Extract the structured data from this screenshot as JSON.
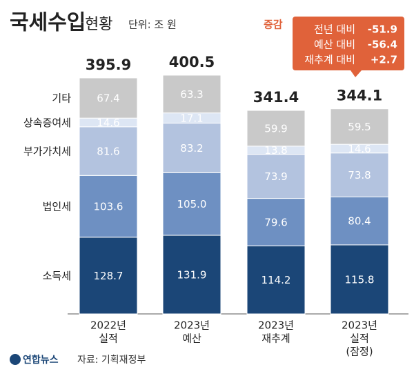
{
  "chart_data": {
    "type": "stacked-bar",
    "title": "국세수입",
    "subtitle": "현황",
    "unit": "단위: 조 원",
    "categories": [
      [
        "2022년",
        "실적"
      ],
      [
        "2023년",
        "예산"
      ],
      [
        "2023년",
        "재추계"
      ],
      [
        "2023년",
        "실적",
        "(잠정)"
      ]
    ],
    "series": [
      {
        "name": "소득세",
        "color": "#1b4677",
        "text_color": "#ffffff",
        "values": [
          128.7,
          131.9,
          114.2,
          115.8
        ],
        "value_labels": [
          "128.7",
          "131.9",
          "114.2",
          "115.8"
        ]
      },
      {
        "name": "법인세",
        "color": "#6e90c2",
        "text_color": "#ffffff",
        "values": [
          103.6,
          105.0,
          79.6,
          80.4
        ],
        "value_labels": [
          "103.6",
          "105.0",
          "79.6",
          "80.4"
        ]
      },
      {
        "name": "부가가치세",
        "color": "#b3c3df",
        "text_color": "#ffffff",
        "values": [
          81.6,
          83.2,
          73.9,
          73.8
        ],
        "value_labels": [
          "81.6",
          "83.2",
          "73.9",
          "73.8"
        ]
      },
      {
        "name": "상속증여세",
        "color": "#dde6f4",
        "text_color": "#ffffff",
        "values": [
          14.6,
          17.1,
          13.8,
          14.6
        ],
        "value_labels": [
          "14.6",
          "17.1",
          "13.8",
          "14.6"
        ]
      },
      {
        "name": "기타",
        "color": "#c9c9c9",
        "text_color": "#ffffff",
        "values": [
          67.4,
          63.3,
          59.9,
          59.5
        ],
        "value_labels": [
          "67.4",
          "63.3",
          "59.9",
          "59.5"
        ]
      }
    ],
    "totals": [
      395.9,
      400.5,
      341.4,
      344.1
    ],
    "change": {
      "title": "증감",
      "rows": [
        {
          "label": "전년 대비",
          "value": -51.9,
          "value_label": "-51.9"
        },
        {
          "label": "예산 대비",
          "value": -56.4,
          "value_label": "-56.4"
        },
        {
          "label": "재추계 대비",
          "value": 2.7,
          "value_label": "+2.7"
        }
      ]
    },
    "source": "자료: 기획재정부",
    "logo": "연합뉴스"
  }
}
